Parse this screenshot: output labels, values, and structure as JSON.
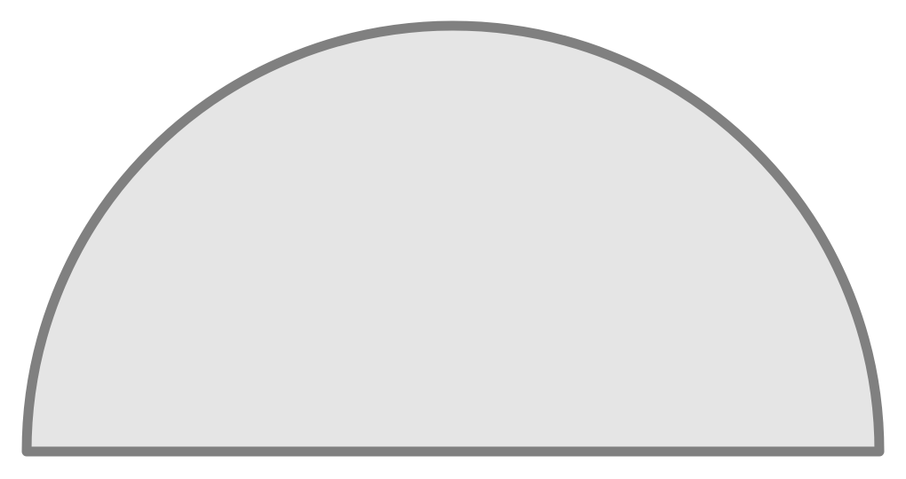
{
  "shape": {
    "kind": "semicircle",
    "fill_color": "#e5e5e5",
    "stroke_color": "#808080"
  }
}
